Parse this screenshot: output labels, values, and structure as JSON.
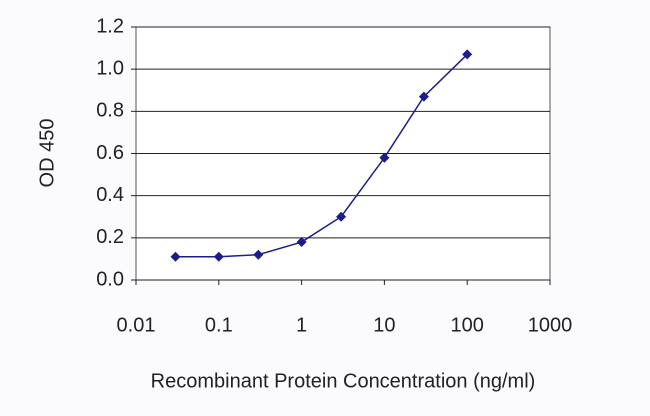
{
  "chart_data": {
    "type": "line",
    "x_label": "Recombinant Protein Concentration (ng/ml)",
    "y_label": "OD 450",
    "x_log": true,
    "x": [
      0.03,
      0.1,
      0.3,
      1,
      3,
      10,
      30,
      100
    ],
    "series": [
      {
        "color": "#1c1c8c",
        "values": [
          0.11,
          0.11,
          0.12,
          0.18,
          0.3,
          0.58,
          0.87,
          1.07
        ]
      }
    ],
    "xlim": [
      0.01,
      1000
    ],
    "xticks": [
      0.01,
      0.1,
      1,
      10,
      100,
      1000
    ],
    "ylim": [
      0,
      1.2
    ],
    "yticks": [
      {
        "value": 0,
        "label": "0.0"
      },
      0.2,
      0.4,
      0.6,
      0.8,
      {
        "value": 1,
        "label": "1.0"
      },
      1.2
    ],
    "grid": true
  }
}
